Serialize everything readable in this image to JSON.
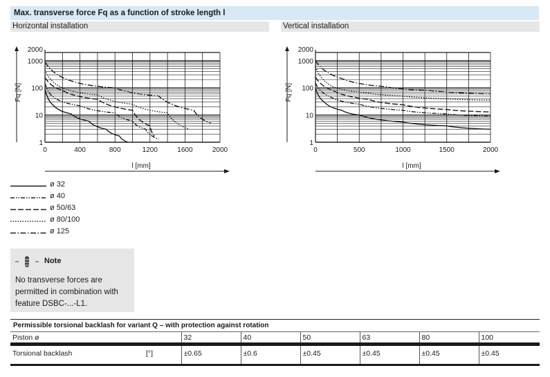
{
  "title": "Max. transverse force Fq as a function of stroke length l",
  "colors": {
    "title_bg": "#d8e8f4",
    "subtitle_bg": "#e6e6e6",
    "line": "#1a1a1a"
  },
  "chart_data": [
    {
      "type": "line",
      "title": "Horizontal installation",
      "xlabel": "l [mm]",
      "ylabel": "Fq [N]",
      "xlim": [
        0,
        2000
      ],
      "ylim": [
        1,
        2000
      ],
      "y_scale": "log",
      "x_ticks": [
        0,
        400,
        800,
        1200,
        1600,
        2000
      ],
      "y_tick_labels": [
        "1",
        "10",
        "100",
        "1000",
        "2000"
      ],
      "grid": true,
      "series": [
        {
          "name": "Ø 32",
          "dash": "solid",
          "x": [
            0,
            100,
            300,
            500,
            700,
            850,
            950
          ],
          "y": [
            90,
            22,
            11,
            6,
            3,
            1.7,
            1
          ]
        },
        {
          "name": "Ø 40",
          "dash": "dashdotdot",
          "x": [
            0,
            100,
            400,
            800,
            1000,
            1150,
            1300
          ],
          "y": [
            150,
            45,
            22,
            12,
            6,
            3,
            1.3
          ]
        },
        {
          "name": "Ø 50/63",
          "dash": "dashed",
          "x": [
            0,
            200,
            600,
            1000,
            1200,
            1250
          ],
          "y": [
            240,
            80,
            38,
            15,
            4,
            1.7
          ]
        },
        {
          "name": "Ø 80/100",
          "dash": "dotted",
          "x": [
            0,
            200,
            600,
            1000,
            1400,
            1650
          ],
          "y": [
            450,
            100,
            55,
            25,
            12,
            3
          ]
        },
        {
          "name": "Ø 125",
          "dash": "dashdot",
          "x": [
            0,
            300,
            800,
            1300,
            1700,
            1900
          ],
          "y": [
            900,
            180,
            100,
            50,
            15,
            5
          ]
        }
      ]
    },
    {
      "type": "line",
      "title": "Vertical installation",
      "xlabel": "l [mm]",
      "ylabel": "Fq [N]",
      "xlim": [
        0,
        2000
      ],
      "ylim": [
        1,
        2000
      ],
      "y_scale": "log",
      "x_ticks": [
        0,
        500,
        1000,
        1500,
        2000
      ],
      "y_tick_labels": [
        "1",
        "10",
        "100",
        "1000",
        "2000"
      ],
      "grid": true,
      "series": [
        {
          "name": "Ø 32",
          "dash": "solid",
          "x": [
            0,
            100,
            300,
            500,
            1000,
            1500,
            2000
          ],
          "y": [
            100,
            30,
            15,
            10,
            5.5,
            4,
            3
          ]
        },
        {
          "name": "Ø 40",
          "dash": "dashdotdot",
          "x": [
            0,
            150,
            500,
            1000,
            1500,
            2000
          ],
          "y": [
            150,
            50,
            25,
            15,
            11,
            9
          ]
        },
        {
          "name": "Ø 50/63",
          "dash": "dashed",
          "x": [
            0,
            200,
            600,
            1000,
            1500,
            2000
          ],
          "y": [
            250,
            80,
            38,
            24,
            16,
            13
          ]
        },
        {
          "name": "Ø 80/100",
          "dash": "dotted",
          "x": [
            0,
            200,
            600,
            1000,
            1500,
            2000
          ],
          "y": [
            600,
            110,
            65,
            50,
            40,
            35
          ]
        },
        {
          "name": "Ø 125",
          "dash": "dashdot",
          "x": [
            0,
            300,
            800,
            1300,
            2000
          ],
          "y": [
            1000,
            220,
            110,
            80,
            60
          ]
        }
      ]
    }
  ],
  "legend": [
    {
      "label": "ø 32",
      "dash": "solid"
    },
    {
      "label": "ø 40",
      "dash": "dashdotdot"
    },
    {
      "label": "ø 50/63",
      "dash": "dashed"
    },
    {
      "label": "ø 80/100",
      "dash": "dotted"
    },
    {
      "label": "ø 125",
      "dash": "dashdot"
    }
  ],
  "note": {
    "title": "Note",
    "icon": "info-icon",
    "lines": [
      "No transverse forces are",
      "permitted in combination with",
      "feature DSBC-...-L1."
    ]
  },
  "table": {
    "title": "Permissible torsional backlash for variant Q – with protection against rotation",
    "header_label": "Piston ø",
    "pistons": [
      "32",
      "40",
      "50",
      "63",
      "80",
      "100"
    ],
    "row_label": "Torsional backlash",
    "unit": "[°]",
    "values": [
      "±0.65",
      "±0.6",
      "±0.45",
      "±0.45",
      "±0.45",
      "±0.45"
    ]
  }
}
